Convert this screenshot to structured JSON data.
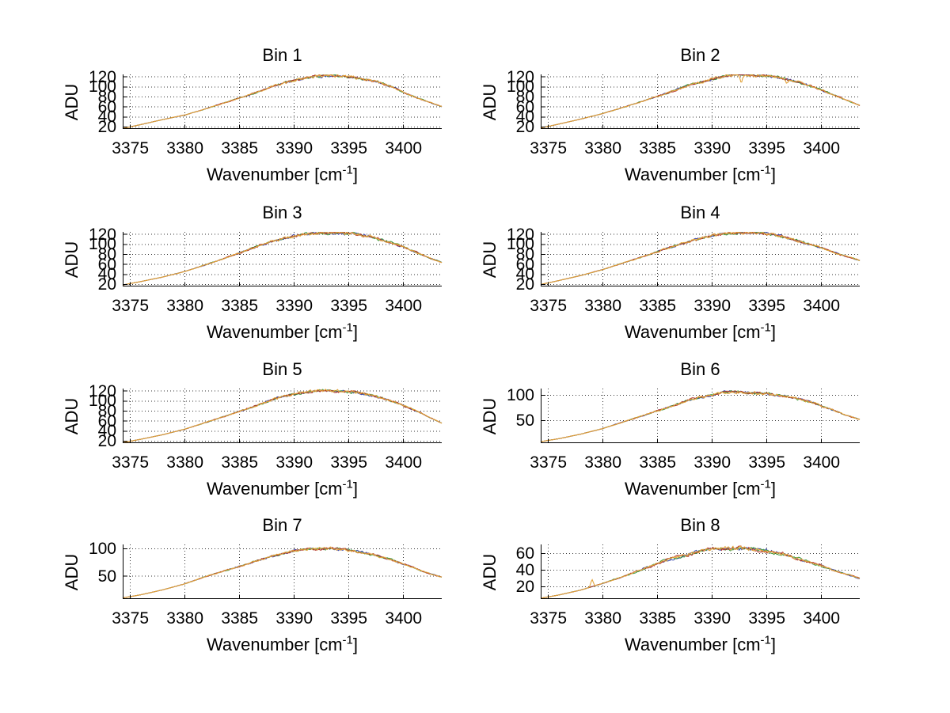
{
  "figure": {
    "background": "#ffffff",
    "axis_color": "#000000",
    "grid_color": "#333333",
    "text_color": "#000000",
    "ylabel": "ADU",
    "xlabel": {
      "base": "Wavenumber [cm",
      "exp": "-1",
      "suffix": "]"
    },
    "series_colors": [
      "#3947ae",
      "#3f9b3f",
      "#b03028",
      "#e2a33b"
    ],
    "grid_style": "dotted",
    "layout": "4 rows x 2 columns"
  },
  "chart_data": [
    {
      "type": "line",
      "title": "Bin 1",
      "xlabel": "Wavenumber [cm-1]",
      "ylabel": "ADU",
      "x_ticks": [
        3375,
        3380,
        3385,
        3390,
        3395,
        3400
      ],
      "xlim": [
        3374.3,
        3403.5
      ],
      "y_ticks": [
        20,
        40,
        60,
        80,
        100,
        120
      ],
      "ylim": [
        16,
        125
      ],
      "grid": true,
      "noise": 2.6,
      "spread": 0.9,
      "spikes": [],
      "envelope": [
        [
          3374.3,
          17
        ],
        [
          3376,
          25
        ],
        [
          3378,
          35
        ],
        [
          3380,
          44
        ],
        [
          3382,
          57
        ],
        [
          3384,
          71
        ],
        [
          3386,
          85
        ],
        [
          3388,
          101
        ],
        [
          3389.5,
          110
        ],
        [
          3391,
          118
        ],
        [
          3392,
          121
        ],
        [
          3393.5,
          122
        ],
        [
          3395,
          120
        ],
        [
          3396,
          117
        ],
        [
          3397.5,
          111
        ],
        [
          3399,
          100
        ],
        [
          3400,
          89
        ],
        [
          3401.5,
          76
        ],
        [
          3403.5,
          61
        ]
      ]
    },
    {
      "type": "line",
      "title": "Bin 2",
      "xlabel": "Wavenumber [cm-1]",
      "ylabel": "ADU",
      "x_ticks": [
        3375,
        3380,
        3385,
        3390,
        3395,
        3400
      ],
      "xlim": [
        3374.3,
        3403.5
      ],
      "y_ticks": [
        20,
        40,
        60,
        80,
        100,
        120
      ],
      "ylim": [
        16,
        125
      ],
      "grid": true,
      "noise": 2.6,
      "spread": 0.9,
      "spikes": [
        {
          "x": 3392.65,
          "dy": -17
        },
        {
          "x": 3396.8,
          "dy": -7
        }
      ],
      "envelope": [
        [
          3374.3,
          18
        ],
        [
          3376,
          26
        ],
        [
          3378,
          36
        ],
        [
          3380,
          47
        ],
        [
          3382,
          60
        ],
        [
          3384,
          74
        ],
        [
          3386,
          89
        ],
        [
          3388,
          104
        ],
        [
          3390,
          116
        ],
        [
          3391,
          121
        ],
        [
          3392,
          124
        ],
        [
          3393.5,
          124
        ],
        [
          3395,
          122
        ],
        [
          3396.5,
          117
        ],
        [
          3398,
          109
        ],
        [
          3399.5,
          98
        ],
        [
          3401,
          85
        ],
        [
          3402,
          76
        ],
        [
          3403.5,
          63
        ]
      ]
    },
    {
      "type": "line",
      "title": "Bin 3",
      "xlabel": "Wavenumber [cm-1]",
      "ylabel": "ADU",
      "x_ticks": [
        3375,
        3380,
        3385,
        3390,
        3395,
        3400
      ],
      "xlim": [
        3374.3,
        3403.5
      ],
      "y_ticks": [
        20,
        40,
        60,
        80,
        100,
        120
      ],
      "ylim": [
        16,
        125
      ],
      "grid": true,
      "noise": 3.0,
      "spread": 0.9,
      "spikes": [],
      "envelope": [
        [
          3374.3,
          19
        ],
        [
          3376,
          26
        ],
        [
          3378,
          35
        ],
        [
          3380,
          46
        ],
        [
          3382,
          60
        ],
        [
          3384,
          75
        ],
        [
          3386,
          91
        ],
        [
          3388,
          106
        ],
        [
          3389.5,
          115
        ],
        [
          3391,
          120
        ],
        [
          3392.5,
          123
        ],
        [
          3394,
          123
        ],
        [
          3395.5,
          121
        ],
        [
          3397,
          115
        ],
        [
          3398.5,
          106
        ],
        [
          3400,
          95
        ],
        [
          3401.5,
          81
        ],
        [
          3402.5,
          72
        ],
        [
          3403.5,
          64
        ]
      ]
    },
    {
      "type": "line",
      "title": "Bin 4",
      "xlabel": "Wavenumber [cm-1]",
      "ylabel": "ADU",
      "x_ticks": [
        3375,
        3380,
        3385,
        3390,
        3395,
        3400
      ],
      "xlim": [
        3374.3,
        3403.5
      ],
      "y_ticks": [
        20,
        40,
        60,
        80,
        100,
        120
      ],
      "ylim": [
        16,
        125
      ],
      "grid": true,
      "noise": 2.8,
      "spread": 0.9,
      "spikes": [],
      "envelope": [
        [
          3374.3,
          20
        ],
        [
          3376,
          28
        ],
        [
          3378,
          38
        ],
        [
          3380,
          50
        ],
        [
          3382,
          64
        ],
        [
          3384,
          78
        ],
        [
          3386,
          93
        ],
        [
          3388,
          107
        ],
        [
          3390,
          117
        ],
        [
          3391.5,
          122
        ],
        [
          3393,
          124
        ],
        [
          3394.5,
          123
        ],
        [
          3396,
          118
        ],
        [
          3397,
          112
        ],
        [
          3398.5,
          103
        ],
        [
          3400,
          93
        ],
        [
          3401.5,
          81
        ],
        [
          3403.5,
          68
        ]
      ]
    },
    {
      "type": "line",
      "title": "Bin 5",
      "xlabel": "Wavenumber [cm-1]",
      "ylabel": "ADU",
      "x_ticks": [
        3375,
        3380,
        3385,
        3390,
        3395,
        3400
      ],
      "xlim": [
        3374.3,
        3403.5
      ],
      "y_ticks": [
        20,
        40,
        60,
        80,
        100,
        120
      ],
      "ylim": [
        16,
        125
      ],
      "grid": true,
      "noise": 2.6,
      "spread": 0.9,
      "spikes": [],
      "envelope": [
        [
          3374.3,
          17
        ],
        [
          3376,
          24
        ],
        [
          3378,
          33
        ],
        [
          3380,
          44
        ],
        [
          3382,
          58
        ],
        [
          3384,
          72
        ],
        [
          3386,
          87
        ],
        [
          3388,
          103
        ],
        [
          3389.5,
          112
        ],
        [
          3391,
          118
        ],
        [
          3392.5,
          121
        ],
        [
          3394,
          120
        ],
        [
          3395.5,
          118
        ],
        [
          3397,
          112
        ],
        [
          3398.5,
          103
        ],
        [
          3400,
          91
        ],
        [
          3401.5,
          77
        ],
        [
          3402.5,
          66
        ],
        [
          3403.5,
          56
        ]
      ]
    },
    {
      "type": "line",
      "title": "Bin 6",
      "xlabel": "Wavenumber [cm-1]",
      "ylabel": "ADU",
      "x_ticks": [
        3375,
        3380,
        3385,
        3390,
        3395,
        3400
      ],
      "xlim": [
        3374.3,
        3403.5
      ],
      "y_ticks": [
        50,
        100
      ],
      "ylim": [
        5,
        113
      ],
      "grid": true,
      "noise": 2.6,
      "spread": 1.1,
      "spikes": [],
      "envelope": [
        [
          3374.3,
          8
        ],
        [
          3376,
          14
        ],
        [
          3378,
          23
        ],
        [
          3380,
          34
        ],
        [
          3382,
          48
        ],
        [
          3384,
          62
        ],
        [
          3386,
          76
        ],
        [
          3388,
          91
        ],
        [
          3390,
          101
        ],
        [
          3391,
          105
        ],
        [
          3392,
          106
        ],
        [
          3393.5,
          105
        ],
        [
          3395,
          103
        ],
        [
          3396.5,
          99
        ],
        [
          3398,
          92
        ],
        [
          3399.5,
          83
        ],
        [
          3401,
          71
        ],
        [
          3402,
          62
        ],
        [
          3403.5,
          52
        ]
      ]
    },
    {
      "type": "line",
      "title": "Bin 7",
      "xlabel": "Wavenumber [cm-1]",
      "ylabel": "ADU",
      "x_ticks": [
        3375,
        3380,
        3385,
        3390,
        3395,
        3400
      ],
      "xlim": [
        3374.3,
        3403.5
      ],
      "y_ticks": [
        50,
        100
      ],
      "ylim": [
        8,
        108
      ],
      "grid": true,
      "noise": 2.2,
      "spread": 1.0,
      "spikes": [],
      "envelope": [
        [
          3374.3,
          10
        ],
        [
          3376,
          16
        ],
        [
          3378,
          25
        ],
        [
          3380,
          36
        ],
        [
          3382,
          50
        ],
        [
          3384,
          62
        ],
        [
          3386,
          74
        ],
        [
          3388,
          87
        ],
        [
          3390,
          96
        ],
        [
          3391.5,
          100
        ],
        [
          3393,
          101
        ],
        [
          3394.5,
          99
        ],
        [
          3396,
          94
        ],
        [
          3397.5,
          88
        ],
        [
          3399,
          79
        ],
        [
          3400.5,
          69
        ],
        [
          3402,
          57
        ],
        [
          3403.5,
          48
        ]
      ]
    },
    {
      "type": "line",
      "title": "Bin 8",
      "xlabel": "Wavenumber [cm-1]",
      "ylabel": "ADU",
      "x_ticks": [
        3375,
        3380,
        3385,
        3390,
        3395,
        3400
      ],
      "xlim": [
        3374.3,
        3403.5
      ],
      "y_ticks": [
        20,
        40,
        60
      ],
      "ylim": [
        5,
        71
      ],
      "grid": true,
      "noise": 2.0,
      "spread": 1.6,
      "spikes": [
        {
          "x": 3379.0,
          "dy": 9
        }
      ],
      "envelope": [
        [
          3374.3,
          6
        ],
        [
          3376,
          10
        ],
        [
          3378,
          16
        ],
        [
          3380,
          24
        ],
        [
          3382,
          33
        ],
        [
          3384,
          43
        ],
        [
          3386,
          53
        ],
        [
          3388,
          60
        ],
        [
          3390,
          65
        ],
        [
          3391.5,
          67
        ],
        [
          3393,
          66
        ],
        [
          3395,
          63
        ],
        [
          3396.5,
          59
        ],
        [
          3398,
          53
        ],
        [
          3400,
          45
        ],
        [
          3401.5,
          38
        ],
        [
          3403.5,
          30
        ]
      ]
    }
  ]
}
